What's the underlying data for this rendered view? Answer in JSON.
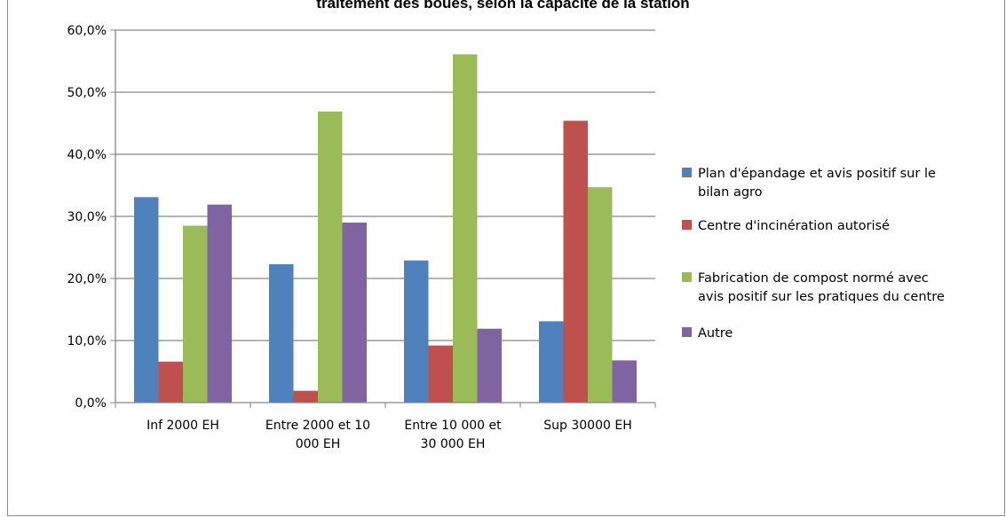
{
  "chart_data": {
    "type": "bar",
    "title": "traitement des boues, selon la capacité de la station",
    "categories": [
      [
        "Inf 2000 EH"
      ],
      [
        "Entre 2000 et 10",
        "000 EH"
      ],
      [
        "Entre 10 000 et",
        "30 000 EH"
      ],
      [
        "Sup 30000 EH"
      ]
    ],
    "series": [
      {
        "name": [
          "Plan d'épandage et avis positif sur le",
          "bilan agro"
        ],
        "color": "#4f81bd",
        "values": [
          33.1,
          22.3,
          22.9,
          13.1
        ]
      },
      {
        "name": [
          "Centre d'incinération autorisé"
        ],
        "color": "#c0504d",
        "values": [
          6.6,
          1.9,
          9.2,
          45.4
        ]
      },
      {
        "name": [
          "Fabrication de compost normé avec",
          "avis positif sur les pratiques du centre"
        ],
        "color": "#9bbb59",
        "values": [
          28.5,
          46.9,
          56.1,
          34.7
        ]
      },
      {
        "name": [
          "Autre"
        ],
        "color": "#8064a2",
        "values": [
          31.9,
          29.0,
          11.9,
          6.8
        ]
      }
    ],
    "ylim": [
      0,
      60
    ],
    "yticks": [
      "0,0%",
      "10,0%",
      "20,0%",
      "30,0%",
      "40,0%",
      "50,0%",
      "60,0%"
    ],
    "grid": true,
    "legend_position": "right"
  }
}
